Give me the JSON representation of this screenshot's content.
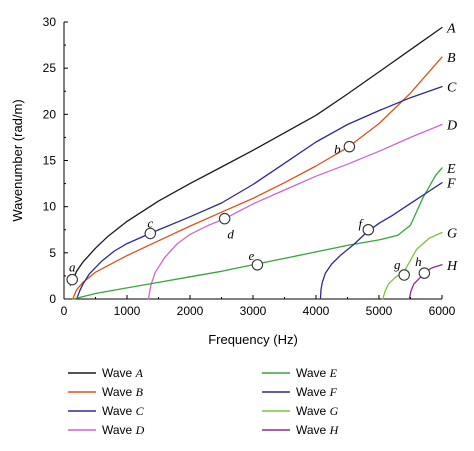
{
  "chart_data": {
    "type": "line",
    "xlabel": "Frequency (Hz)",
    "ylabel": "Wavenumber (rad/m)",
    "xlim": [
      0,
      6000
    ],
    "ylim": [
      0,
      30
    ],
    "xticks": [
      0,
      1000,
      2000,
      3000,
      4000,
      5000,
      6000
    ],
    "yticks": [
      0,
      5,
      10,
      15,
      20,
      25,
      30
    ],
    "grid": false,
    "legend_position": "bottom, two columns",
    "series": [
      {
        "name": "Wave A",
        "letter": "A",
        "color": "#1a1a1a",
        "x": [
          100,
          200,
          300,
          500,
          700,
          1000,
          1500,
          2000,
          2500,
          3000,
          3500,
          4000,
          4500,
          5000,
          5500,
          6000
        ],
        "y": [
          1.5,
          3.0,
          4.0,
          5.5,
          6.8,
          8.4,
          10.6,
          12.5,
          14.3,
          16.1,
          18.0,
          19.9,
          22.2,
          24.6,
          27.0,
          29.4
        ]
      },
      {
        "name": "Wave B",
        "letter": "B",
        "color": "#d9541a",
        "x": [
          140,
          200,
          300,
          500,
          1000,
          1500,
          2000,
          2500,
          3000,
          3500,
          4000,
          4500,
          5000,
          5500,
          6000
        ],
        "y": [
          0.0,
          1.0,
          1.8,
          2.9,
          4.7,
          6.3,
          7.9,
          9.4,
          10.9,
          12.6,
          14.4,
          16.4,
          19.0,
          22.3,
          26.2
        ]
      },
      {
        "name": "Wave C",
        "letter": "C",
        "color": "#2a2b8f",
        "x": [
          200,
          250,
          300,
          400,
          600,
          800,
          1000,
          1400,
          2000,
          2500,
          3000,
          3500,
          4000,
          4500,
          5000,
          5500,
          6000
        ],
        "y": [
          0.0,
          0.9,
          1.6,
          2.7,
          4.1,
          5.2,
          6.0,
          7.2,
          8.9,
          10.4,
          12.4,
          14.7,
          17.0,
          18.9,
          20.4,
          21.8,
          23.0
        ]
      },
      {
        "name": "Wave D",
        "letter": "D",
        "color": "#cc66cc",
        "x": [
          1340,
          1380,
          1450,
          1600,
          1800,
          2000,
          2300,
          2550,
          3000,
          3500,
          4000,
          4500,
          5000,
          5500,
          6000
        ],
        "y": [
          0.0,
          1.5,
          2.9,
          4.5,
          6.0,
          7.0,
          8.0,
          8.7,
          10.3,
          11.8,
          13.3,
          14.6,
          16.0,
          17.5,
          18.9
        ]
      },
      {
        "name": "Wave E",
        "letter": "E",
        "color": "#3aa33a",
        "x": [
          150,
          500,
          1000,
          1500,
          2000,
          2500,
          3000,
          3500,
          4000,
          4500,
          5000,
          5300,
          5500,
          5700,
          5900,
          6000
        ],
        "y": [
          0.0,
          0.6,
          1.2,
          1.8,
          2.4,
          3.0,
          3.7,
          4.4,
          5.1,
          5.8,
          6.4,
          6.9,
          8.0,
          11.0,
          13.4,
          14.2
        ]
      },
      {
        "name": "Wave F",
        "letter": "F",
        "color": "#2a2b8f",
        "x": [
          4070,
          4080,
          4100,
          4150,
          4250,
          4400,
          4600,
          4800,
          5000,
          5200,
          5400,
          5600,
          5800,
          6000
        ],
        "y": [
          0.0,
          1.0,
          1.8,
          2.8,
          3.8,
          4.8,
          5.9,
          7.2,
          8.2,
          9.0,
          9.9,
          10.8,
          11.7,
          12.6
        ]
      },
      {
        "name": "Wave G",
        "letter": "G",
        "color": "#7cc242",
        "x": [
          5060,
          5100,
          5150,
          5250,
          5400,
          5600,
          5800,
          6000
        ],
        "y": [
          0.0,
          0.9,
          1.6,
          2.3,
          3.0,
          5.4,
          6.6,
          7.2
        ]
      },
      {
        "name": "Wave H",
        "letter": "H",
        "color": "#8b2c8e",
        "x": [
          5480,
          5510,
          5550,
          5650,
          5720,
          5850,
          6000
        ],
        "y": [
          0.0,
          0.9,
          1.6,
          2.3,
          2.9,
          3.4,
          3.7
        ]
      }
    ],
    "markers": [
      {
        "label": "a",
        "x": 130,
        "y": 2.1
      },
      {
        "label": "b",
        "x": 4530,
        "y": 16.5
      },
      {
        "label": "c",
        "x": 1370,
        "y": 7.1
      },
      {
        "label": "d",
        "x": 2550,
        "y": 8.7
      },
      {
        "label": "e",
        "x": 3070,
        "y": 3.7
      },
      {
        "label": "f",
        "x": 4830,
        "y": 7.5
      },
      {
        "label": "g",
        "x": 5400,
        "y": 2.6
      },
      {
        "label": "h",
        "x": 5720,
        "y": 2.8
      }
    ]
  }
}
